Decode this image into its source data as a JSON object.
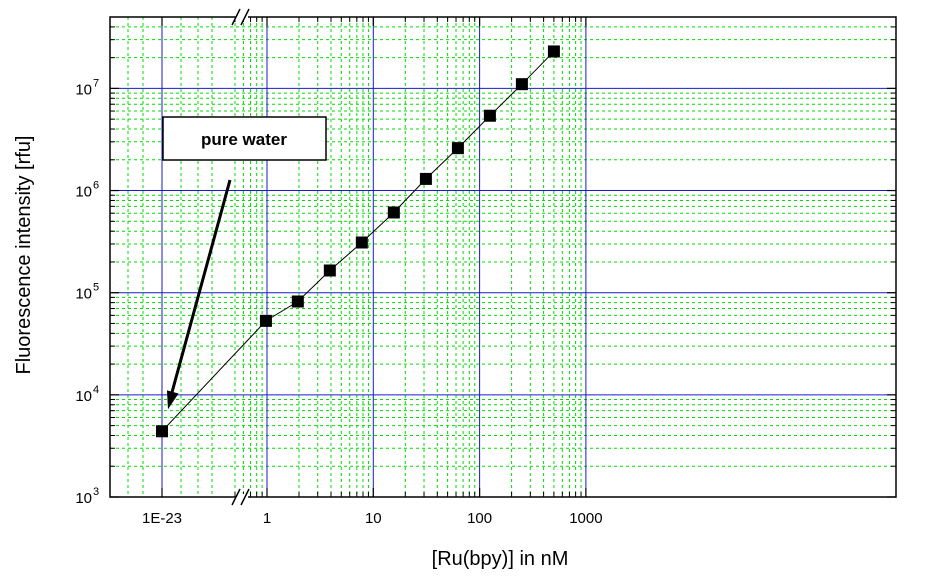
{
  "chart_data": {
    "type": "scatter",
    "title": "",
    "xlabel": "[Ru(bpy)] in nM",
    "ylabel": "Fluorescence intensity [rfu]",
    "x_scale": "log",
    "y_scale": "log",
    "xlim": [
      0.4,
      1000
    ],
    "ylim": [
      1000,
      50000000
    ],
    "grid": true,
    "x_ticks": [
      "1E-23",
      "1",
      "10",
      "100",
      "1000"
    ],
    "y_ticks": [
      {
        "base": "10",
        "exp": "3"
      },
      {
        "base": "10",
        "exp": "4"
      },
      {
        "base": "10",
        "exp": "5"
      },
      {
        "base": "10",
        "exp": "6"
      },
      {
        "base": "10",
        "exp": "7"
      }
    ],
    "axis_break": true,
    "annotation": {
      "text": "pure water",
      "points_to": "1E-23"
    },
    "series": [
      {
        "x": [
          "1E-23",
          0.977,
          1.95,
          3.9,
          7.8,
          15.6,
          31.25,
          62.5,
          125,
          250,
          500
        ],
        "y": [
          4400,
          53000,
          82000,
          165000,
          310000,
          610000,
          1300000,
          2600000,
          5400000,
          11000000,
          23000000
        ]
      }
    ],
    "colors": {
      "major_grid": "#1a1acc",
      "minor_grid": "#00dd00",
      "marker": "#000000",
      "line": "#000000"
    }
  }
}
